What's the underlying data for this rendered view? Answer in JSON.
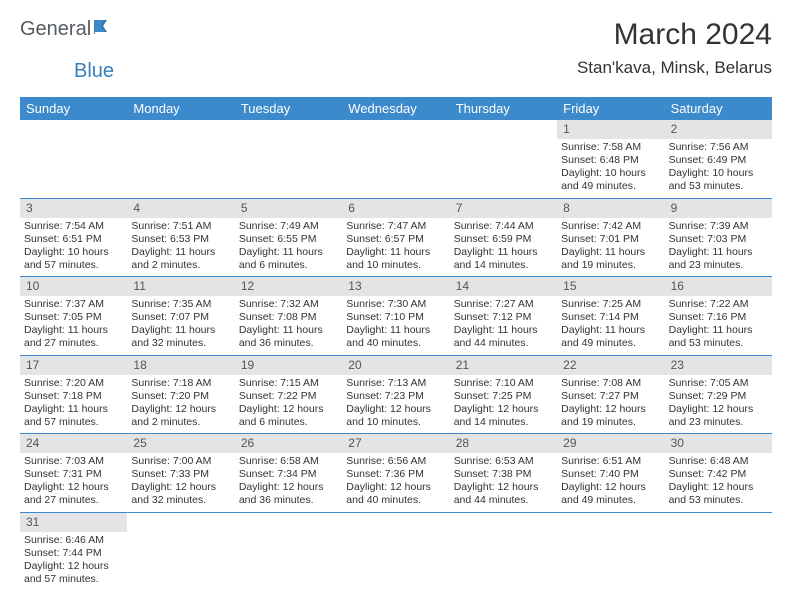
{
  "brand": {
    "general": "General",
    "blue": "Blue"
  },
  "title": "March 2024",
  "location": "Stan'kava, Minsk, Belarus",
  "colors": {
    "header_bg": "#3c8acb",
    "header_text": "#ffffff",
    "daynum_bg": "#e3e4e5",
    "row_border": "#3c8acb",
    "text": "#333333",
    "logo_gray": "#555b60",
    "logo_blue": "#3a7fb8"
  },
  "dow": [
    "Sunday",
    "Monday",
    "Tuesday",
    "Wednesday",
    "Thursday",
    "Friday",
    "Saturday"
  ],
  "weeks": [
    [
      null,
      null,
      null,
      null,
      null,
      {
        "n": "1",
        "sr": "Sunrise: 7:58 AM",
        "ss": "Sunset: 6:48 PM",
        "dl": "Daylight: 10 hours and 49 minutes."
      },
      {
        "n": "2",
        "sr": "Sunrise: 7:56 AM",
        "ss": "Sunset: 6:49 PM",
        "dl": "Daylight: 10 hours and 53 minutes."
      }
    ],
    [
      {
        "n": "3",
        "sr": "Sunrise: 7:54 AM",
        "ss": "Sunset: 6:51 PM",
        "dl": "Daylight: 10 hours and 57 minutes."
      },
      {
        "n": "4",
        "sr": "Sunrise: 7:51 AM",
        "ss": "Sunset: 6:53 PM",
        "dl": "Daylight: 11 hours and 2 minutes."
      },
      {
        "n": "5",
        "sr": "Sunrise: 7:49 AM",
        "ss": "Sunset: 6:55 PM",
        "dl": "Daylight: 11 hours and 6 minutes."
      },
      {
        "n": "6",
        "sr": "Sunrise: 7:47 AM",
        "ss": "Sunset: 6:57 PM",
        "dl": "Daylight: 11 hours and 10 minutes."
      },
      {
        "n": "7",
        "sr": "Sunrise: 7:44 AM",
        "ss": "Sunset: 6:59 PM",
        "dl": "Daylight: 11 hours and 14 minutes."
      },
      {
        "n": "8",
        "sr": "Sunrise: 7:42 AM",
        "ss": "Sunset: 7:01 PM",
        "dl": "Daylight: 11 hours and 19 minutes."
      },
      {
        "n": "9",
        "sr": "Sunrise: 7:39 AM",
        "ss": "Sunset: 7:03 PM",
        "dl": "Daylight: 11 hours and 23 minutes."
      }
    ],
    [
      {
        "n": "10",
        "sr": "Sunrise: 7:37 AM",
        "ss": "Sunset: 7:05 PM",
        "dl": "Daylight: 11 hours and 27 minutes."
      },
      {
        "n": "11",
        "sr": "Sunrise: 7:35 AM",
        "ss": "Sunset: 7:07 PM",
        "dl": "Daylight: 11 hours and 32 minutes."
      },
      {
        "n": "12",
        "sr": "Sunrise: 7:32 AM",
        "ss": "Sunset: 7:08 PM",
        "dl": "Daylight: 11 hours and 36 minutes."
      },
      {
        "n": "13",
        "sr": "Sunrise: 7:30 AM",
        "ss": "Sunset: 7:10 PM",
        "dl": "Daylight: 11 hours and 40 minutes."
      },
      {
        "n": "14",
        "sr": "Sunrise: 7:27 AM",
        "ss": "Sunset: 7:12 PM",
        "dl": "Daylight: 11 hours and 44 minutes."
      },
      {
        "n": "15",
        "sr": "Sunrise: 7:25 AM",
        "ss": "Sunset: 7:14 PM",
        "dl": "Daylight: 11 hours and 49 minutes."
      },
      {
        "n": "16",
        "sr": "Sunrise: 7:22 AM",
        "ss": "Sunset: 7:16 PM",
        "dl": "Daylight: 11 hours and 53 minutes."
      }
    ],
    [
      {
        "n": "17",
        "sr": "Sunrise: 7:20 AM",
        "ss": "Sunset: 7:18 PM",
        "dl": "Daylight: 11 hours and 57 minutes."
      },
      {
        "n": "18",
        "sr": "Sunrise: 7:18 AM",
        "ss": "Sunset: 7:20 PM",
        "dl": "Daylight: 12 hours and 2 minutes."
      },
      {
        "n": "19",
        "sr": "Sunrise: 7:15 AM",
        "ss": "Sunset: 7:22 PM",
        "dl": "Daylight: 12 hours and 6 minutes."
      },
      {
        "n": "20",
        "sr": "Sunrise: 7:13 AM",
        "ss": "Sunset: 7:23 PM",
        "dl": "Daylight: 12 hours and 10 minutes."
      },
      {
        "n": "21",
        "sr": "Sunrise: 7:10 AM",
        "ss": "Sunset: 7:25 PM",
        "dl": "Daylight: 12 hours and 14 minutes."
      },
      {
        "n": "22",
        "sr": "Sunrise: 7:08 AM",
        "ss": "Sunset: 7:27 PM",
        "dl": "Daylight: 12 hours and 19 minutes."
      },
      {
        "n": "23",
        "sr": "Sunrise: 7:05 AM",
        "ss": "Sunset: 7:29 PM",
        "dl": "Daylight: 12 hours and 23 minutes."
      }
    ],
    [
      {
        "n": "24",
        "sr": "Sunrise: 7:03 AM",
        "ss": "Sunset: 7:31 PM",
        "dl": "Daylight: 12 hours and 27 minutes."
      },
      {
        "n": "25",
        "sr": "Sunrise: 7:00 AM",
        "ss": "Sunset: 7:33 PM",
        "dl": "Daylight: 12 hours and 32 minutes."
      },
      {
        "n": "26",
        "sr": "Sunrise: 6:58 AM",
        "ss": "Sunset: 7:34 PM",
        "dl": "Daylight: 12 hours and 36 minutes."
      },
      {
        "n": "27",
        "sr": "Sunrise: 6:56 AM",
        "ss": "Sunset: 7:36 PM",
        "dl": "Daylight: 12 hours and 40 minutes."
      },
      {
        "n": "28",
        "sr": "Sunrise: 6:53 AM",
        "ss": "Sunset: 7:38 PM",
        "dl": "Daylight: 12 hours and 44 minutes."
      },
      {
        "n": "29",
        "sr": "Sunrise: 6:51 AM",
        "ss": "Sunset: 7:40 PM",
        "dl": "Daylight: 12 hours and 49 minutes."
      },
      {
        "n": "30",
        "sr": "Sunrise: 6:48 AM",
        "ss": "Sunset: 7:42 PM",
        "dl": "Daylight: 12 hours and 53 minutes."
      }
    ],
    [
      {
        "n": "31",
        "sr": "Sunrise: 6:46 AM",
        "ss": "Sunset: 7:44 PM",
        "dl": "Daylight: 12 hours and 57 minutes."
      },
      null,
      null,
      null,
      null,
      null,
      null
    ]
  ]
}
